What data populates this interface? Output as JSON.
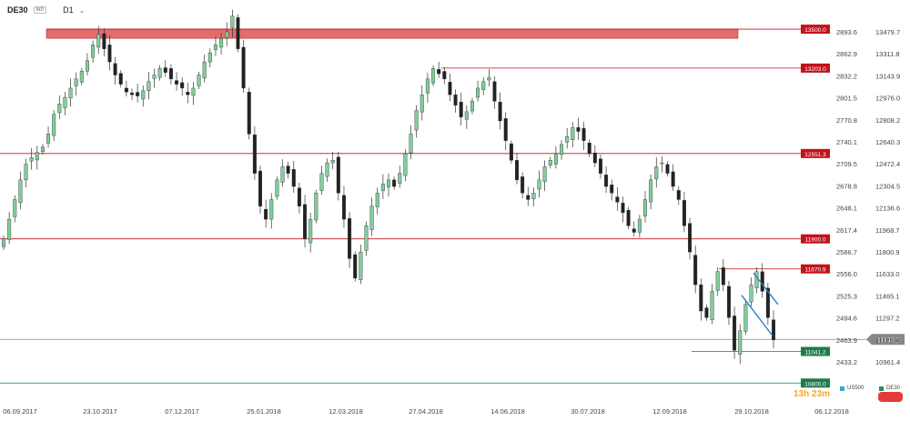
{
  "header": {
    "symbol": "DE30",
    "badge": "IND",
    "timeframe": "D1"
  },
  "countdown": {
    "hours": "13h",
    "minutes": "23m"
  },
  "legend": [
    {
      "label": "US500",
      "color": "#3aa7c9"
    },
    {
      "label": "DE30",
      "color": "#2e8b57"
    }
  ],
  "colors": {
    "up": "#7fcf9b",
    "down": "#222222",
    "res": "#c0131a",
    "sup": "#1f7a4d",
    "zone": "#e05252",
    "channel": "#2a7fcf",
    "current": "#888888"
  },
  "chart_data": {
    "type": "candlestick",
    "x_ticks": [
      "06.09.2017",
      "23.10.2017",
      "07.12.2017",
      "25.01.2018",
      "12.03.2018",
      "27.04.2018",
      "14.06.2018",
      "30.07.2018",
      "12.09.2018",
      "29.10.2018",
      "06.12.2018"
    ],
    "y_left_ticks": [
      "2893.6",
      "2862.9",
      "2832.2",
      "2801.5",
      "2770.8",
      "2740.1",
      "2709.5",
      "2678.8",
      "2648.1",
      "2617.4",
      "2586.7",
      "2556.0",
      "2525.3",
      "2494.6",
      "2463.9",
      "2433.2"
    ],
    "y_right_ticks": [
      "13479.7",
      "13311.8",
      "13143.9",
      "12976.0",
      "12808.2",
      "12640.3",
      "12472.4",
      "12304.5",
      "12136.6",
      "11968.7",
      "11800.9",
      "11633.0",
      "11465.1",
      "11297.2",
      "11129.4",
      "10961.4"
    ],
    "ylim_right": [
      10961.4,
      13479.7
    ],
    "resistance_levels": [
      "13500.0",
      "13203.0",
      "12551.3",
      "11900.0",
      "11670.9"
    ],
    "support_levels": [
      "11041.2",
      "10800.0"
    ],
    "current_price": "11133.1",
    "supply_zone": [
      13430,
      13500
    ],
    "closes": [
      11900,
      12050,
      12200,
      12350,
      12470,
      12520,
      12560,
      12600,
      12700,
      12850,
      12930,
      12980,
      13050,
      13120,
      13180,
      13260,
      13380,
      13460,
      13350,
      13250,
      13150,
      13080,
      13020,
      13000,
      12990,
      13030,
      13100,
      13150,
      13200,
      13170,
      13120,
      13080,
      13050,
      13000,
      13050,
      13150,
      13250,
      13320,
      13380,
      13430,
      13480,
      13600,
      13350,
      13050,
      12700,
      12400,
      12150,
      12050,
      12200,
      12350,
      12450,
      12400,
      12300,
      12150,
      11900,
      12050,
      12250,
      12400,
      12480,
      12500,
      12250,
      12050,
      11750,
      11600,
      11800,
      12000,
      12150,
      12250,
      12320,
      12350,
      12300,
      12400,
      12550,
      12700,
      12880,
      13000,
      13120,
      13200,
      13160,
      13120,
      13000,
      12920,
      12830,
      12870,
      12950,
      13050,
      13100,
      13130,
      12950,
      12800,
      12650,
      12500,
      12350,
      12250,
      12200,
      12250,
      12350,
      12450,
      12500,
      12550,
      12620,
      12680,
      12750,
      12720,
      12650,
      12550,
      12480,
      12400,
      12300,
      12250,
      12180,
      12100,
      12000,
      11950,
      12050,
      12200,
      12350,
      12450,
      12480,
      12400,
      12300,
      12200,
      12000,
      11800,
      11550,
      11350,
      11300,
      11500,
      11650,
      11550,
      11300,
      11050,
      11200,
      11400,
      11550,
      11650,
      11500,
      11300,
      11130
    ]
  }
}
